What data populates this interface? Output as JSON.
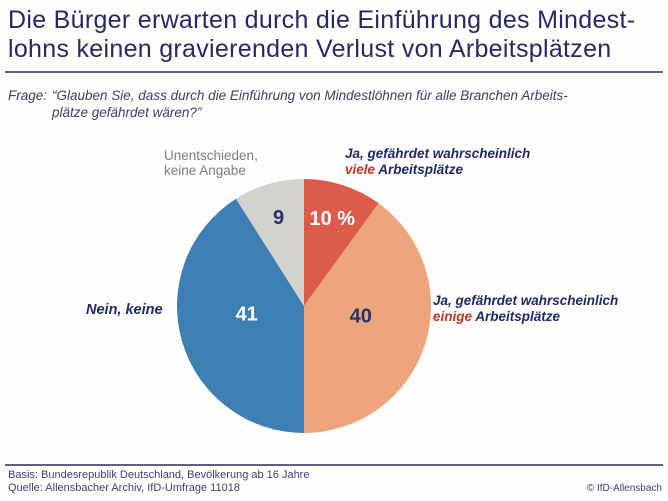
{
  "header": {
    "title_line1": "Die Bürger erwarten durch die Einführung des Mindest-",
    "title_line2": "lohns keinen gravierenden Verlust von Arbeitsplätzen"
  },
  "question": {
    "label": "Frage:",
    "line1": "“Glauben Sie, dass durch die Einführung von Mindestlöhnen für alle Branchen Arbeits-",
    "line2": "plätze gefährdet wären?”"
  },
  "chart_data": {
    "type": "pie",
    "title": "Die Bürger erwarten durch die Einführung des Mindestlohns keinen gravierenden Verlust von Arbeitsplätzen",
    "start_angle_deg": 0,
    "direction": "clockwise",
    "unit": "percent",
    "legend_position": "labels-around-pie",
    "segments": [
      {
        "label": "Ja, gefährdet wahrscheinlich viele Arbeitsplätze",
        "value": 10,
        "display": "10 %",
        "color": "#dd5b4a",
        "value_color": "#ffffff"
      },
      {
        "label": "Ja, gefährdet wahrscheinlich einige Arbeitsplätze",
        "value": 40,
        "display": "40",
        "color": "#eda57e",
        "value_color": "#2a3168"
      },
      {
        "label": "Nein, keine",
        "value": 41,
        "display": "41",
        "color": "#3d7eb3",
        "value_color": "#ffffff"
      },
      {
        "label": "Unentschieden, keine Angabe",
        "value": 9,
        "display": "9",
        "color": "#d3d2ce",
        "value_color": "#2a3168"
      }
    ]
  },
  "callouts": {
    "undecided": {
      "line1": "Unentschieden,",
      "line2": "keine Angabe"
    },
    "many": {
      "line1": "Ja, gefährdet wahrscheinlich",
      "red": "viele",
      "rest": " Arbeitsplätze"
    },
    "none": {
      "text": "Nein, keine"
    },
    "some": {
      "line1": "Ja, gefährdet wahrscheinlich",
      "red": "einige",
      "rest": " Arbeitsplätze"
    }
  },
  "footer": {
    "basis": "Basis: Bundesrepublik Deutschland, Bevölkerung ab 16 Jahre",
    "quelle": "Quelle: Allensbacher Archiv, IfD-Umfrage 11018",
    "copyright": "© IfD-Allensbach"
  },
  "colors": {
    "title_navy": "#262a63",
    "callout_navy": "#1f2a66",
    "accent_red": "#c13529",
    "gray_text": "#7d7d7d",
    "divider": "#5d6180"
  }
}
